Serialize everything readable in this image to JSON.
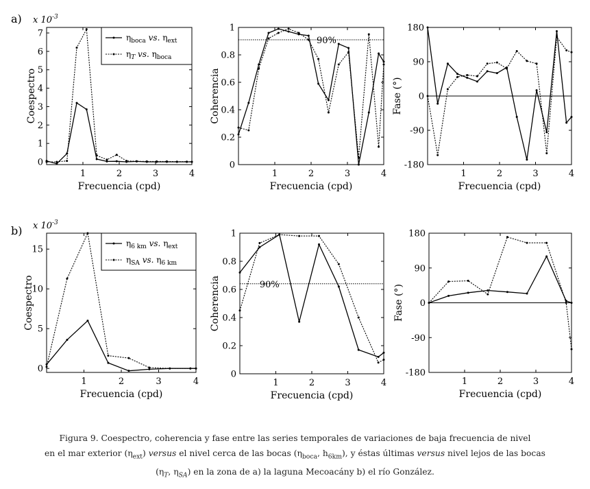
{
  "figure": {
    "panel_labels": [
      "a)",
      "b)"
    ],
    "caption_lines": [
      {
        "parts": [
          {
            "t": "Figura 9. Coespectro, coherencia y fase entre las series temporales de variaciones de baja frecuencia de nivel"
          }
        ]
      },
      {
        "parts": [
          {
            "t": "en el mar exterior (η"
          },
          {
            "t": "ext",
            "sub": true
          },
          {
            "t": ") "
          },
          {
            "t": "versus",
            "i": true
          },
          {
            "t": " el nivel cerca de las bocas (η"
          },
          {
            "t": "boca",
            "sub": true
          },
          {
            "t": ", h"
          },
          {
            "t": "6km",
            "sub": true
          },
          {
            "t": "), y éstas últimas "
          },
          {
            "t": "versus",
            "i": true
          },
          {
            "t": " nivel lejos de las bocas"
          }
        ]
      },
      {
        "parts": [
          {
            "t": "(η"
          },
          {
            "t": "T",
            "sub": true,
            "i": true
          },
          {
            "t": ", η"
          },
          {
            "t": "SA",
            "sub": true,
            "i": true
          },
          {
            "t": ") en la zona de a) la laguna Mecoacány b) el río González."
          }
        ]
      }
    ]
  },
  "chart_data": [
    {
      "id": "a-coespectro",
      "row": "a",
      "type": "line",
      "ylabel": "Coespectro",
      "xlabel": "Frecuencia (cpd)",
      "exponent_label": "x 10-3",
      "xlim": [
        0,
        4
      ],
      "ylim": [
        -0.15,
        7.3
      ],
      "xticks": [
        1,
        2,
        3,
        4
      ],
      "yticks": [
        0,
        1,
        2,
        3,
        4,
        5,
        6,
        7
      ],
      "ytick_labels": [
        "0",
        "1",
        "2",
        "3",
        "4",
        "5",
        "6",
        "7"
      ],
      "legend": true,
      "series": [
        {
          "name": "ηboca vs. ηext",
          "legend_parts": [
            {
              "t": "η"
            },
            {
              "t": "boca",
              "sub": true
            },
            {
              "t": " "
            },
            {
              "t": "vs.",
              "i": true
            },
            {
              "t": " η"
            },
            {
              "t": "ext",
              "sub": true
            }
          ],
          "style": "solid",
          "x": [
            0,
            0.28,
            0.56,
            0.83,
            1.1,
            1.38,
            1.66,
            1.93,
            2.2,
            2.48,
            2.76,
            3.03,
            3.31,
            3.59,
            3.86,
            4.0
          ],
          "y": [
            0.05,
            -0.1,
            0.45,
            3.2,
            2.85,
            0.15,
            0.02,
            0.03,
            0.0,
            0.02,
            0.0,
            0.0,
            0.0,
            0.0,
            0.0,
            0.0
          ]
        },
        {
          "name": "ηT vs. ηboca",
          "legend_parts": [
            {
              "t": "η"
            },
            {
              "t": "T",
              "sub": true,
              "i": true
            },
            {
              "t": " "
            },
            {
              "t": "vs.",
              "i": true
            },
            {
              "t": " η"
            },
            {
              "t": "boca",
              "sub": true
            }
          ],
          "style": "dotted",
          "x": [
            0,
            0.28,
            0.56,
            0.83,
            1.1,
            1.38,
            1.66,
            1.93,
            2.2,
            2.48,
            2.76,
            3.03,
            3.31,
            3.59,
            3.86,
            4.0
          ],
          "y": [
            0.0,
            0.0,
            0.05,
            6.2,
            7.2,
            0.35,
            0.12,
            0.38,
            0.05,
            0.03,
            0.02,
            0.02,
            0.02,
            0.01,
            0.01,
            0.0
          ]
        }
      ]
    },
    {
      "id": "a-coherencia",
      "row": "a",
      "type": "line",
      "ylabel": "Coherencia",
      "xlabel": "Frecuencia (cpd)",
      "xlim": [
        0,
        4
      ],
      "ylim": [
        0,
        1
      ],
      "xticks": [
        1,
        2,
        3,
        4
      ],
      "yticks": [
        0,
        0.2,
        0.4,
        0.6,
        0.8,
        1
      ],
      "ytick_labels": [
        "0",
        "0.2",
        "0.4",
        "0.6",
        "0.8",
        "1"
      ],
      "hline": {
        "y": 0.91,
        "style": "dotted",
        "label": "90%",
        "label_x": 2.15
      },
      "series": [
        {
          "name": "ηboca vs. ηext",
          "style": "solid",
          "x": [
            0,
            0.28,
            0.56,
            0.83,
            1.1,
            1.38,
            1.66,
            1.93,
            2.2,
            2.48,
            2.76,
            3.03,
            3.31,
            3.59,
            3.86,
            4.0
          ],
          "y": [
            0.22,
            0.45,
            0.73,
            0.96,
            0.99,
            0.97,
            0.95,
            0.94,
            0.59,
            0.47,
            0.88,
            0.85,
            0.0,
            0.38,
            0.81,
            0.75
          ]
        },
        {
          "name": "ηT vs. ηboca",
          "style": "dotted",
          "x": [
            0,
            0.28,
            0.56,
            0.83,
            1.1,
            1.38,
            1.66,
            1.93,
            2.2,
            2.48,
            2.76,
            3.03,
            3.31,
            3.59,
            3.86,
            4.0
          ],
          "y": [
            0.27,
            0.25,
            0.7,
            0.92,
            0.96,
            0.99,
            0.96,
            0.91,
            0.77,
            0.38,
            0.73,
            0.82,
            0.05,
            0.95,
            0.13,
            0.73
          ]
        }
      ]
    },
    {
      "id": "a-fase",
      "row": "a",
      "type": "line",
      "ylabel": "Fase (°)",
      "xlabel": "Frecuencia (cpd)",
      "xlim": [
        0,
        4
      ],
      "ylim": [
        -180,
        180
      ],
      "xticks": [
        1,
        2,
        3,
        4
      ],
      "yticks": [
        -180,
        -90,
        0,
        90,
        180
      ],
      "ytick_labels": [
        "-180",
        "-90",
        "0",
        "90",
        "180"
      ],
      "hline": {
        "y": 0,
        "style": "solid"
      },
      "series": [
        {
          "name": "ηboca vs. ηext",
          "style": "solid",
          "x": [
            0,
            0.28,
            0.56,
            0.83,
            1.1,
            1.38,
            1.66,
            1.93,
            2.2,
            2.48,
            2.76,
            3.03,
            3.31,
            3.59,
            3.86,
            4.0
          ],
          "y": [
            180,
            -20,
            85,
            58,
            48,
            38,
            65,
            60,
            75,
            -55,
            -167,
            15,
            -95,
            170,
            -70,
            -55
          ]
        },
        {
          "name": "ηT vs. ηboca",
          "style": "dotted",
          "x": [
            0,
            0.28,
            0.56,
            0.83,
            1.1,
            1.38,
            1.66,
            1.93,
            2.2,
            2.48,
            2.76,
            3.03,
            3.31,
            3.59,
            3.86,
            4.0
          ],
          "y": [
            0,
            -155,
            18,
            50,
            55,
            52,
            85,
            88,
            72,
            118,
            92,
            85,
            -150,
            155,
            120,
            115
          ]
        }
      ]
    },
    {
      "id": "b-coespectro",
      "row": "b",
      "type": "line",
      "ylabel": "Coespectro",
      "xlabel": "Frecuencia (cpd)",
      "exponent_label": "x 10-3",
      "xlim": [
        0,
        4
      ],
      "ylim": [
        -0.5,
        17
      ],
      "xticks": [
        1,
        2,
        3,
        4
      ],
      "yticks": [
        0,
        5,
        10,
        15
      ],
      "ytick_labels": [
        "0",
        "5",
        "10",
        "15"
      ],
      "legend": true,
      "series": [
        {
          "name": "η6 km vs. ηext",
          "legend_parts": [
            {
              "t": "η"
            },
            {
              "t": "6 km",
              "sub": true
            },
            {
              "t": " "
            },
            {
              "t": "vs.",
              "i": true
            },
            {
              "t": " η"
            },
            {
              "t": "ext",
              "sub": true
            }
          ],
          "style": "solid",
          "x": [
            0,
            0.55,
            1.1,
            1.65,
            2.2,
            2.75,
            3.3,
            3.85,
            4.0
          ],
          "y": [
            0.5,
            3.6,
            6.0,
            0.7,
            -0.3,
            -0.1,
            0.0,
            0.0,
            0.0
          ]
        },
        {
          "name": "ηSA vs. η6 km",
          "legend_parts": [
            {
              "t": "η"
            },
            {
              "t": "SA",
              "sub": true
            },
            {
              "t": " "
            },
            {
              "t": "vs.",
              "i": true
            },
            {
              "t": " η"
            },
            {
              "t": "6 km",
              "sub": true
            }
          ],
          "style": "dotted",
          "x": [
            0,
            0.55,
            1.1,
            1.65,
            2.2,
            2.75,
            3.3,
            3.85,
            4.0
          ],
          "y": [
            0.2,
            11.3,
            17.0,
            1.6,
            1.3,
            0.1,
            0.0,
            0.0,
            0.0
          ]
        }
      ]
    },
    {
      "id": "b-coherencia",
      "row": "b",
      "type": "line",
      "ylabel": "Coherencia",
      "xlabel": "Frecuencia (cpd)",
      "xlim": [
        0,
        4
      ],
      "ylim": [
        0,
        1
      ],
      "xticks": [
        1,
        2,
        3,
        4
      ],
      "yticks": [
        0,
        0.2,
        0.4,
        0.6,
        0.8,
        1
      ],
      "ytick_labels": [
        "0",
        "0.2",
        "0.4",
        "0.6",
        "0.8",
        "1"
      ],
      "hline": {
        "y": 0.64,
        "style": "dotted",
        "label": "90%",
        "label_x": 0.55
      },
      "series": [
        {
          "name": "η6 km vs. ηext",
          "style": "solid",
          "x": [
            0,
            0.55,
            1.1,
            1.65,
            2.2,
            2.75,
            3.3,
            3.85,
            4.0
          ],
          "y": [
            0.72,
            0.9,
            0.99,
            0.37,
            0.92,
            0.62,
            0.17,
            0.12,
            0.15
          ]
        },
        {
          "name": "ηSA vs. η6 km",
          "style": "dotted",
          "x": [
            0,
            0.55,
            1.1,
            1.65,
            2.2,
            2.75,
            3.3,
            3.85,
            4.0
          ],
          "y": [
            0.45,
            0.93,
            0.99,
            0.98,
            0.98,
            0.78,
            0.4,
            0.08,
            0.1
          ]
        }
      ]
    },
    {
      "id": "b-fase",
      "row": "b",
      "type": "line",
      "ylabel": "Fase (°)",
      "xlabel": "Frecuencia (cpd)",
      "xlim": [
        0,
        4
      ],
      "ylim": [
        -180,
        180
      ],
      "xticks": [
        1,
        2,
        3,
        4
      ],
      "yticks": [
        -180,
        -90,
        0,
        90,
        180
      ],
      "ytick_labels": [
        "-180",
        "-90",
        "0",
        "90",
        "180"
      ],
      "hline": {
        "y": 0,
        "style": "solid"
      },
      "series": [
        {
          "name": "η6 km vs. ηext",
          "style": "solid",
          "x": [
            0,
            0.55,
            1.1,
            1.65,
            2.2,
            2.75,
            3.3,
            3.85,
            4.0
          ],
          "y": [
            0,
            18,
            26,
            32,
            28,
            24,
            120,
            5,
            0
          ]
        },
        {
          "name": "ηSA vs. η6 km",
          "style": "dotted",
          "x": [
            0,
            0.55,
            1.1,
            1.65,
            2.2,
            2.75,
            3.3,
            3.85,
            4.0
          ],
          "y": [
            0,
            55,
            57,
            22,
            170,
            155,
            155,
            0,
            -120
          ]
        }
      ]
    }
  ]
}
